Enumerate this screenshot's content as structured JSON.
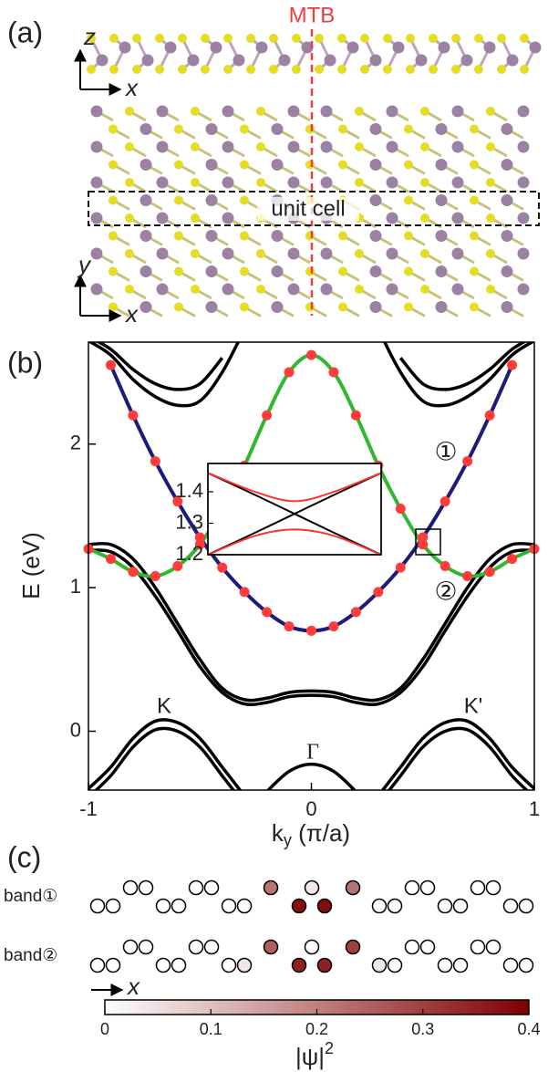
{
  "structure": {
    "label": "(a)",
    "boundary": "MTB",
    "side_axes": [
      "z",
      "x"
    ],
    "top_axes": [
      "y",
      "x"
    ],
    "cell": "unit cell"
  },
  "chart_data": {
    "type": "line",
    "label": "(b)",
    "xlabel": [
      "k",
      "y",
      " (π/a)"
    ],
    "ylabel": "E (eV)",
    "xlim": [
      -1,
      1
    ],
    "xticks": [
      -1,
      0,
      1
    ],
    "ylim": [
      -0.41,
      2.71
    ],
    "yticks": [
      0,
      1,
      2
    ],
    "x": [
      -1,
      -0.9,
      -0.8,
      -0.7,
      -0.6,
      -0.5,
      -0.4,
      -0.3,
      -0.2,
      -0.1,
      0,
      0.1,
      0.2,
      0.3,
      0.4,
      0.5,
      0.6,
      0.7,
      0.8,
      0.9,
      1
    ],
    "series": [
      {
        "color": "#1c1c7a",
        "markers": "#ff3b3b",
        "values": [
          null,
          2.55,
          2.2,
          1.88,
          1.6,
          1.35,
          1.14,
          0.97,
          0.83,
          0.73,
          0.7,
          0.73,
          0.83,
          0.97,
          1.14,
          1.35,
          1.6,
          1.88,
          2.2,
          2.55,
          null
        ]
      },
      {
        "color": "#2db82d",
        "markers": "#ff3b3b",
        "values": [
          1.27,
          1.2,
          1.11,
          1.08,
          1.15,
          1.3,
          1.55,
          1.85,
          2.2,
          2.5,
          2.62,
          2.5,
          2.2,
          1.85,
          1.55,
          1.3,
          1.15,
          1.08,
          1.11,
          1.2,
          1.27
        ]
      },
      {
        "color": "#000000",
        "values": [
          1.3,
          1.3,
          1.2,
          1.0,
          0.75,
          0.5,
          0.3,
          0.22,
          0.23,
          0.27,
          0.28,
          0.27,
          0.23,
          0.22,
          0.3,
          0.5,
          0.75,
          1.0,
          1.2,
          1.3,
          1.3
        ]
      },
      {
        "color": "#000000",
        "values": [
          1.26,
          1.25,
          1.14,
          0.94,
          0.7,
          0.45,
          0.27,
          0.19,
          0.2,
          0.24,
          0.25,
          0.24,
          0.2,
          0.19,
          0.27,
          0.45,
          0.7,
          0.94,
          1.14,
          1.25,
          1.26
        ]
      },
      {
        "color": "#000000",
        "values": [
          -0.4,
          -0.25,
          -0.05,
          0.07,
          0.06,
          -0.05,
          -0.25,
          -0.45,
          null,
          null,
          null,
          null,
          null,
          -0.45,
          -0.25,
          -0.05,
          0.06,
          0.07,
          -0.05,
          -0.25,
          -0.4
        ]
      },
      {
        "color": "#000000",
        "values": [
          -0.46,
          -0.31,
          -0.11,
          0.01,
          0.0,
          -0.11,
          -0.31,
          -0.51,
          null,
          null,
          null,
          null,
          null,
          -0.51,
          -0.31,
          -0.11,
          0.0,
          0.01,
          -0.11,
          -0.31,
          -0.46
        ]
      },
      {
        "color": "#000000",
        "values": [
          null,
          null,
          null,
          null,
          null,
          null,
          null,
          null,
          -0.42,
          -0.28,
          -0.23,
          -0.28,
          -0.42,
          null,
          null,
          null,
          null,
          null,
          null,
          null,
          null
        ]
      },
      {
        "color": "#000000",
        "values": [
          2.72,
          2.62,
          2.45,
          2.33,
          2.27,
          2.3,
          2.5,
          2.8,
          null,
          null,
          null,
          null,
          null,
          2.8,
          2.5,
          2.3,
          2.27,
          2.33,
          2.45,
          2.62,
          2.72
        ]
      },
      {
        "color": "#000000",
        "values": [
          2.75,
          2.66,
          2.52,
          2.42,
          2.38,
          2.42,
          2.6,
          null,
          null,
          null,
          null,
          null,
          null,
          null,
          2.6,
          2.42,
          2.38,
          2.42,
          2.52,
          2.66,
          2.75
        ]
      }
    ],
    "annotations": [
      "K",
      "K'",
      "Γ",
      "①",
      "②"
    ],
    "inset": {
      "xlim": [
        0.47,
        0.58
      ],
      "ylim": [
        1.2,
        1.49
      ],
      "yticks": [
        1.2,
        1.3,
        1.4
      ],
      "x": [
        0.47,
        0.5,
        0.525,
        0.55,
        0.58
      ],
      "series": [
        {
          "color": "#000000",
          "values": [
            1.2,
            1.27,
            1.33,
            1.39,
            1.46
          ]
        },
        {
          "color": "#000000",
          "values": [
            1.46,
            1.39,
            1.33,
            1.27,
            1.2
          ]
        },
        {
          "color": "#ff3030",
          "values": [
            1.46,
            1.4,
            1.37,
            1.4,
            1.46
          ]
        },
        {
          "color": "#ff3030",
          "values": [
            1.2,
            1.26,
            1.28,
            1.26,
            1.2
          ]
        }
      ]
    }
  },
  "wavefunction": {
    "label": "(c)",
    "axis": "x",
    "rows": [
      {
        "label": "band①",
        "top": [
          0,
          0,
          0,
          0,
          0.22,
          0.04,
          0.22,
          0,
          0,
          0,
          0
        ],
        "bottom": [
          0,
          0,
          0,
          0,
          0,
          0,
          0.38,
          0.38,
          0,
          0,
          0,
          0,
          0,
          0
        ]
      },
      {
        "label": "band②",
        "top": [
          0,
          0,
          0,
          0,
          0.25,
          0.01,
          0.3,
          0,
          0,
          0,
          0
        ],
        "bottom": [
          0,
          0,
          0,
          0,
          0,
          0.04,
          0.35,
          0.35,
          0.04,
          0,
          0,
          0,
          0,
          0
        ]
      }
    ],
    "colorbar": {
      "lim": [
        0,
        0.4
      ],
      "ticks": [
        0,
        0.1,
        0.2,
        0.3,
        0.4
      ],
      "colors": [
        "#ffffff",
        "#800000"
      ],
      "label": [
        "|ψ|",
        "2"
      ]
    }
  }
}
